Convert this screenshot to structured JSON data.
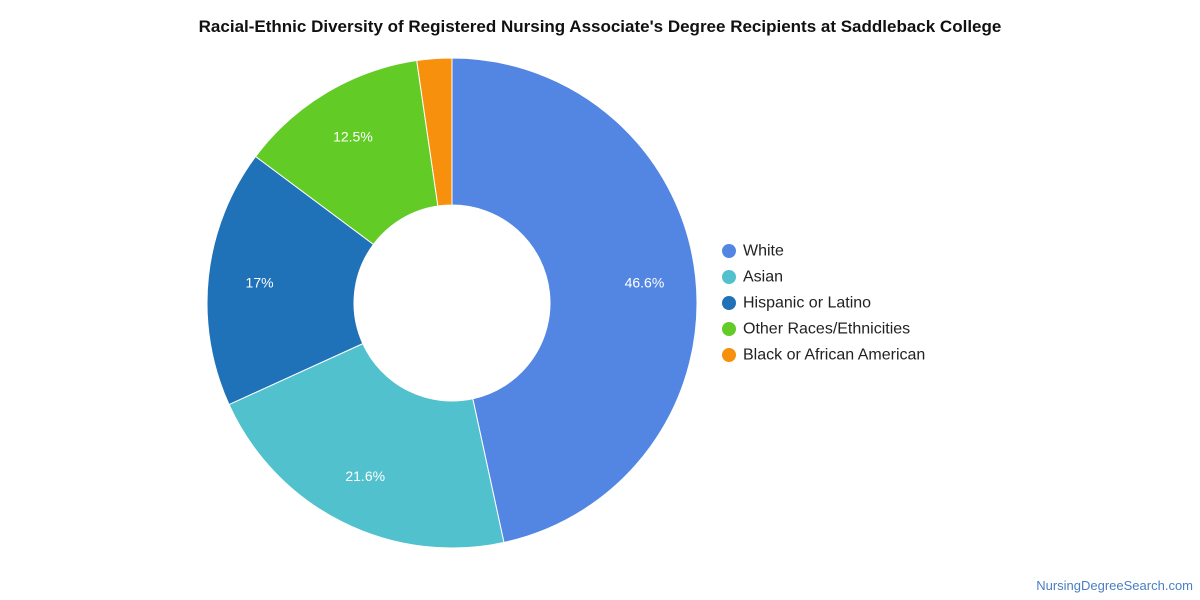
{
  "chart_data": {
    "type": "pie",
    "title": "Racial-Ethnic Diversity of Registered Nursing Associate's Degree Recipients at Saddleback College",
    "slices": [
      {
        "label": "White",
        "value": 46.6,
        "value_label": "46.6%",
        "color": "#5286e2"
      },
      {
        "label": "Asian",
        "value": 21.6,
        "value_label": "21.6%",
        "color": "#50c1cd"
      },
      {
        "label": "Hispanic or Latino",
        "value": 17,
        "value_label": "17%",
        "color": "#1f71b8"
      },
      {
        "label": "Other Races/Ethnicities",
        "value": 12.5,
        "value_label": "12.5%",
        "color": "#62cb25"
      },
      {
        "label": "Black or African American",
        "value": 2.3,
        "value_label": "",
        "color": "#f7900c"
      }
    ],
    "legend_position": "right"
  },
  "footer": {
    "source": "NursingDegreeSearch.com"
  }
}
